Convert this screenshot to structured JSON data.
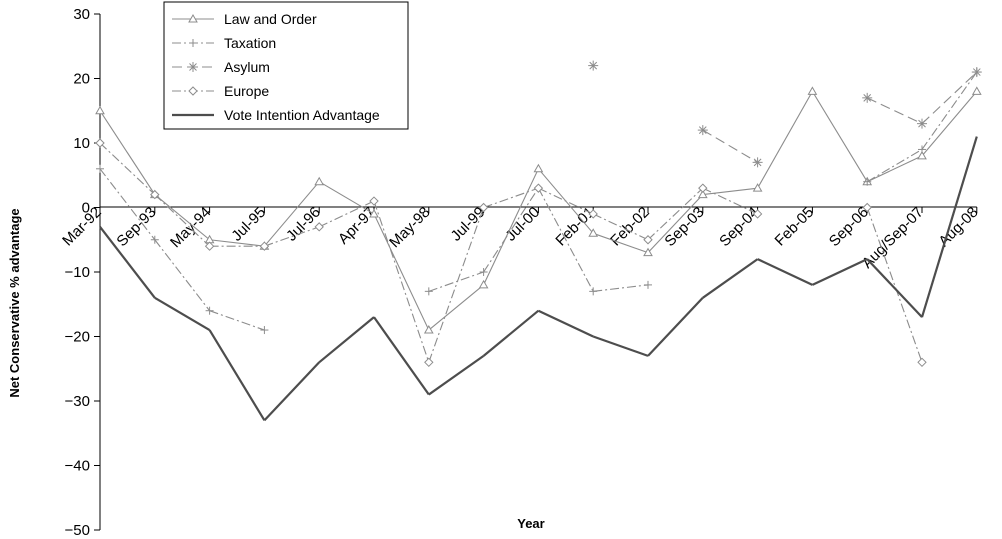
{
  "chart_data": {
    "type": "line",
    "title": "",
    "xlabel": "Year",
    "ylabel": "Net Conservative % advantage",
    "ylim": [
      -50,
      30
    ],
    "yticks": [
      30,
      20,
      10,
      0,
      -10,
      -20,
      -30,
      -40,
      -50
    ],
    "ytick_labels": [
      "30",
      "20",
      "10",
      "0",
      "−10",
      "−20",
      "−30",
      "−40",
      "−50"
    ],
    "grid": false,
    "legend_position": "top-left",
    "categories": [
      "Mar-92",
      "Sep-93",
      "May-94",
      "Jul-95",
      "Jul-96",
      "Apr-97",
      "May-98",
      "Jul-99",
      "Jul-00",
      "Feb-01",
      "Feb-02",
      "Sep-03",
      "Sep-04",
      "Feb-05",
      "Sep-06",
      "Aug/Sep-07",
      "Aug-08"
    ],
    "series": [
      {
        "name": "Law and Order",
        "marker": "triangle",
        "dash": "solid",
        "color": "#8c8c8c",
        "values": [
          15,
          2,
          -5,
          -6,
          4,
          -1,
          -19,
          -12,
          6,
          -4,
          -7,
          2,
          3,
          18,
          4,
          8,
          18
        ]
      },
      {
        "name": "Taxation",
        "marker": "plus",
        "dash": "dash-dot",
        "color": "#8c8c8c",
        "values": [
          6,
          -5,
          -16,
          -19,
          null,
          null,
          -13,
          -10,
          3,
          -13,
          -12,
          null,
          null,
          null,
          4,
          9,
          21
        ]
      },
      {
        "name": "Asylum",
        "marker": "asterisk",
        "dash": "long-dash",
        "color": "#8c8c8c",
        "values": [
          null,
          null,
          null,
          null,
          null,
          null,
          null,
          null,
          null,
          22,
          null,
          12,
          7,
          null,
          17,
          13,
          21
        ]
      },
      {
        "name": "Europe",
        "marker": "diamond",
        "dash": "dash-dot",
        "color": "#8c8c8c",
        "values": [
          10,
          2,
          -6,
          -6,
          -3,
          1,
          -24,
          0,
          3,
          -1,
          -5,
          3,
          -1,
          null,
          0,
          -24,
          null
        ]
      },
      {
        "name": "Vote Intention Advantage",
        "marker": "none",
        "dash": "solid",
        "color": "#4d4d4d",
        "values": [
          -3,
          -14,
          -19,
          -33,
          -24,
          -17,
          -29,
          -23,
          -16,
          -20,
          -23,
          -14,
          -8,
          -12,
          -8,
          -17,
          11
        ]
      }
    ]
  }
}
